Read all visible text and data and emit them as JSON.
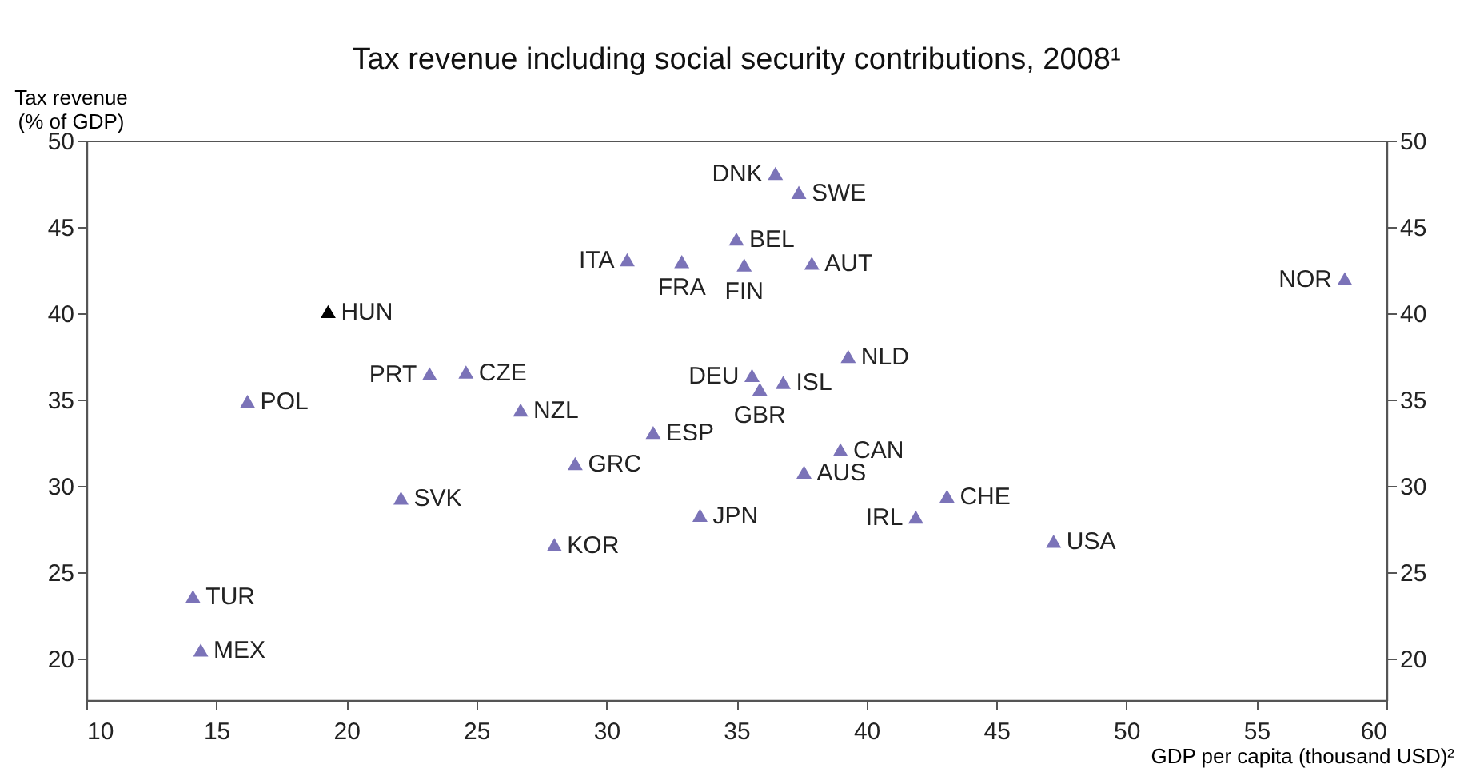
{
  "chart_data": {
    "type": "scatter",
    "title": "Tax revenue including social security contributions, 2008¹",
    "xlabel": "GDP per capita (thousand USD)²",
    "ylabel": "Tax revenue\n(% of GDP)",
    "xlim": [
      10,
      60
    ],
    "xticks": [
      10,
      15,
      20,
      25,
      30,
      35,
      40,
      45,
      50,
      55,
      60
    ],
    "ylim": [
      17.6,
      50
    ],
    "yticks": [
      20,
      25,
      30,
      35,
      40,
      45,
      50
    ],
    "y2lim": [
      17.6,
      50
    ],
    "y2ticks": [
      20,
      25,
      30,
      35,
      40,
      45,
      50
    ],
    "marker": "triangle",
    "grid": false,
    "legend": false,
    "series": [
      {
        "color": "#7b73b8",
        "x": [
          30.8,
          32.9,
          23.2,
          24.6,
          16.2,
          26.7,
          31.8,
          36.5,
          37.4,
          35.0,
          35.3,
          37.9,
          58.4,
          39.3,
          35.6,
          35.9,
          36.8,
          22.1,
          28.8,
          28.0,
          14.1,
          14.4,
          33.6,
          39.0,
          37.6,
          43.1,
          41.9,
          47.2
        ],
        "values": [
          43.1,
          43.0,
          36.5,
          36.6,
          34.9,
          34.4,
          33.1,
          48.1,
          47.0,
          44.3,
          42.8,
          42.9,
          42.0,
          37.5,
          36.4,
          35.6,
          36.0,
          29.3,
          31.3,
          26.6,
          23.6,
          20.5,
          28.3,
          32.1,
          30.8,
          29.4,
          28.2,
          26.8
        ]
      },
      {
        "color": "#000000",
        "x": [
          19.3
        ],
        "values": [
          40.1
        ]
      }
    ],
    "annotations": [
      {
        "text": "ITA",
        "x": 30.8,
        "y": 43.1
      },
      {
        "text": "FRA",
        "x": 32.9,
        "y": 43.0
      },
      {
        "text": "PRT",
        "x": 23.2,
        "y": 36.5
      },
      {
        "text": "CZE",
        "x": 24.6,
        "y": 36.6
      },
      {
        "text": "POL",
        "x": 16.2,
        "y": 34.9
      },
      {
        "text": "NZL",
        "x": 26.7,
        "y": 34.4
      },
      {
        "text": "ESP",
        "x": 31.8,
        "y": 33.1
      },
      {
        "text": "DNK",
        "x": 36.5,
        "y": 48.1
      },
      {
        "text": "SWE",
        "x": 37.4,
        "y": 47.0
      },
      {
        "text": "BEL",
        "x": 35.0,
        "y": 44.3
      },
      {
        "text": "FIN",
        "x": 35.3,
        "y": 42.8
      },
      {
        "text": "AUT",
        "x": 37.9,
        "y": 42.9
      },
      {
        "text": "NOR",
        "x": 58.4,
        "y": 42.0
      },
      {
        "text": "NLD",
        "x": 39.3,
        "y": 37.5
      },
      {
        "text": "DEU",
        "x": 35.6,
        "y": 36.4
      },
      {
        "text": "GBR",
        "x": 35.9,
        "y": 35.6
      },
      {
        "text": "ISL",
        "x": 36.8,
        "y": 36.0
      },
      {
        "text": "SVK",
        "x": 22.1,
        "y": 29.3
      },
      {
        "text": "GRC",
        "x": 28.8,
        "y": 31.3
      },
      {
        "text": "KOR",
        "x": 28.0,
        "y": 26.6
      },
      {
        "text": "TUR",
        "x": 14.1,
        "y": 23.6
      },
      {
        "text": "MEX",
        "x": 14.4,
        "y": 20.5
      },
      {
        "text": "JPN",
        "x": 33.6,
        "y": 28.3
      },
      {
        "text": "CAN",
        "x": 39.0,
        "y": 32.1
      },
      {
        "text": "AUS",
        "x": 37.6,
        "y": 30.8
      },
      {
        "text": "CHE",
        "x": 43.1,
        "y": 29.4
      },
      {
        "text": "IRL",
        "x": 41.9,
        "y": 28.2
      },
      {
        "text": "USA",
        "x": 47.2,
        "y": 26.8
      },
      {
        "text": "HUN",
        "x": 19.3,
        "y": 40.1
      }
    ]
  }
}
